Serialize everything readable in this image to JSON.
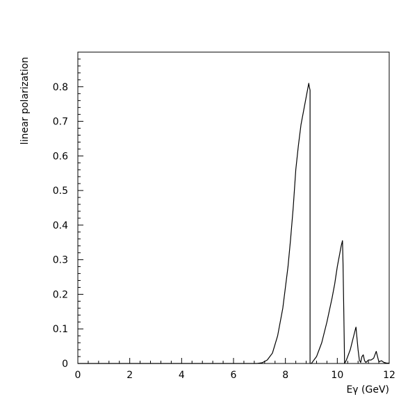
{
  "chart_data": {
    "type": "line",
    "title": "",
    "xlabel": "Eγ (GeV)",
    "ylabel": "linear polarization",
    "xlim": [
      0,
      12
    ],
    "ylim": [
      0,
      0.9
    ],
    "x_ticks": [
      "0",
      "2",
      "4",
      "6",
      "8",
      "10",
      "12"
    ],
    "y_ticks": [
      "0",
      "0.1",
      "0.2",
      "0.3",
      "0.4",
      "0.5",
      "0.6",
      "0.7",
      "0.8"
    ],
    "grid": false,
    "legend": "none",
    "series": [
      {
        "color": "#000000",
        "x": [
          0,
          6.9,
          7.1,
          7.3,
          7.5,
          7.7,
          7.9,
          8.1,
          8.2,
          8.3,
          8.4,
          8.5,
          8.6,
          8.7,
          8.8,
          8.85,
          8.9,
          8.92,
          8.95,
          8.95,
          9.0,
          9.2,
          9.4,
          9.6,
          9.8,
          9.9,
          10.0,
          10.1,
          10.15,
          10.2,
          10.22,
          10.25,
          10.28,
          10.35,
          10.5,
          10.6,
          10.7,
          10.72,
          10.75,
          10.8,
          10.85,
          10.9,
          10.95,
          11.0,
          11.05,
          11.1,
          11.2,
          11.3,
          11.4,
          11.45,
          11.5,
          11.55,
          11.6,
          11.7,
          11.8,
          11.9,
          12.0
        ],
        "y": [
          0,
          0,
          0.002,
          0.01,
          0.03,
          0.08,
          0.16,
          0.28,
          0.36,
          0.45,
          0.56,
          0.63,
          0.69,
          0.73,
          0.77,
          0.79,
          0.81,
          0.8,
          0.79,
          0,
          0,
          0.02,
          0.06,
          0.12,
          0.19,
          0.23,
          0.28,
          0.32,
          0.34,
          0.355,
          0.29,
          0.15,
          0,
          0.01,
          0.04,
          0.07,
          0.1,
          0.105,
          0.08,
          0.04,
          0.01,
          0.003,
          0.02,
          0.025,
          0.008,
          0.003,
          0.01,
          0.01,
          0.015,
          0.025,
          0.035,
          0.02,
          0.005,
          0.008,
          0.003,
          0.001,
          0.001
        ]
      }
    ]
  }
}
